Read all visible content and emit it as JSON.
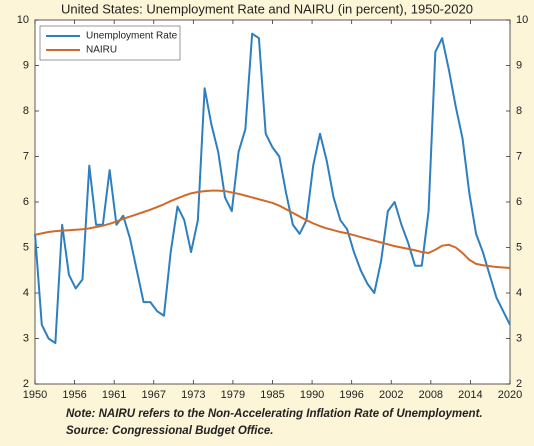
{
  "chart_data": {
    "type": "line",
    "title": "United States: Unemployment Rate and NAIRU (in percent), 1950-2020",
    "x": [
      1950,
      1951,
      1952,
      1953,
      1954,
      1955,
      1956,
      1957,
      1958,
      1959,
      1960,
      1961,
      1962,
      1963,
      1964,
      1965,
      1966,
      1967,
      1968,
      1969,
      1970,
      1971,
      1972,
      1973,
      1974,
      1975,
      1976,
      1977,
      1978,
      1979,
      1980,
      1981,
      1982,
      1983,
      1984,
      1985,
      1986,
      1987,
      1988,
      1989,
      1990,
      1991,
      1992,
      1993,
      1994,
      1995,
      1996,
      1997,
      1998,
      1999,
      2000,
      2001,
      2002,
      2003,
      2004,
      2005,
      2006,
      2007,
      2008,
      2009,
      2010,
      2011,
      2012,
      2013,
      2014,
      2015,
      2016,
      2017,
      2018,
      2019,
      2020
    ],
    "series": [
      {
        "name": "Unemployment Rate",
        "color": "#2e7fbf",
        "values": [
          5.3,
          3.3,
          3.0,
          2.9,
          5.5,
          4.4,
          4.1,
          4.3,
          6.8,
          5.5,
          5.5,
          6.7,
          5.5,
          5.7,
          5.2,
          4.5,
          3.8,
          3.8,
          3.6,
          3.5,
          4.9,
          5.9,
          5.6,
          4.9,
          5.6,
          8.5,
          7.7,
          7.1,
          6.1,
          5.8,
          7.1,
          7.6,
          9.7,
          9.6,
          7.5,
          7.2,
          7.0,
          6.2,
          5.5,
          5.3,
          5.6,
          6.8,
          7.5,
          6.9,
          6.1,
          5.6,
          5.4,
          4.9,
          4.5,
          4.2,
          4.0,
          4.7,
          5.8,
          6.0,
          5.5,
          5.1,
          4.6,
          4.6,
          5.8,
          9.3,
          9.6,
          8.9,
          8.1,
          7.4,
          6.2,
          5.3,
          4.9,
          4.4,
          3.9,
          3.6,
          3.3
        ]
      },
      {
        "name": "NAIRU",
        "color": "#d06a2a",
        "values": [
          5.28,
          5.31,
          5.34,
          5.36,
          5.37,
          5.38,
          5.39,
          5.4,
          5.42,
          5.45,
          5.48,
          5.52,
          5.57,
          5.63,
          5.68,
          5.73,
          5.78,
          5.83,
          5.89,
          5.95,
          6.02,
          6.08,
          6.14,
          6.19,
          6.22,
          6.24,
          6.25,
          6.25,
          6.24,
          6.21,
          6.18,
          6.14,
          6.1,
          6.06,
          6.02,
          5.98,
          5.92,
          5.84,
          5.76,
          5.68,
          5.6,
          5.53,
          5.47,
          5.42,
          5.38,
          5.34,
          5.31,
          5.27,
          5.23,
          5.19,
          5.15,
          5.11,
          5.07,
          5.03,
          5.0,
          4.97,
          4.94,
          4.9,
          4.88,
          4.95,
          5.04,
          5.06,
          5.0,
          4.88,
          4.73,
          4.64,
          4.61,
          4.59,
          4.57,
          4.56,
          4.55
        ]
      }
    ],
    "xlim": [
      1950,
      2020
    ],
    "xticks": [
      1950,
      {
        "value": 1955.833,
        "label": "1956"
      },
      {
        "value": 1961.667,
        "label": "1961"
      },
      {
        "value": 1967.5,
        "label": "1967"
      },
      {
        "value": 1973.333,
        "label": "1973"
      },
      {
        "value": 1979.167,
        "label": "1979"
      },
      1985,
      {
        "value": 1990.833,
        "label": "1990"
      },
      {
        "value": 1996.667,
        "label": "1996"
      },
      {
        "value": 2002.5,
        "label": "2002"
      },
      {
        "value": 2008.333,
        "label": "2008"
      },
      {
        "value": 2014.167,
        "label": "2014"
      },
      2020
    ],
    "ylim": [
      2,
      10
    ],
    "yticks": [
      2,
      3,
      4,
      5,
      6,
      7,
      8,
      9,
      10
    ],
    "legend": "upper left",
    "note": "Note: NAIRU refers to the Non-Accelerating Inflation Rate of Unemployment.",
    "source": "Source: Congressional Budget Office."
  }
}
